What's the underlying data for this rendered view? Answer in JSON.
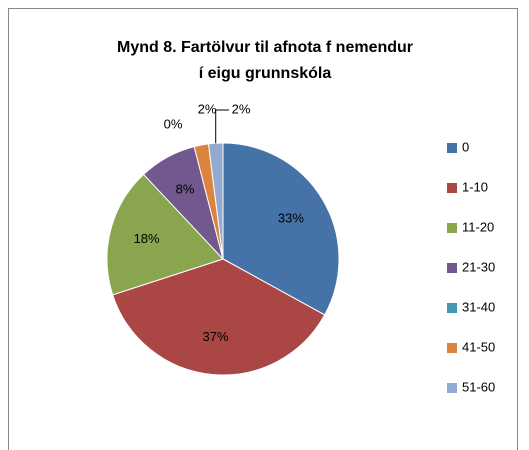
{
  "chart_data": {
    "type": "pie",
    "title": [
      "Mynd 8. Fartölvur til afnota f nemendur",
      "í eigu grunnskóla"
    ],
    "categories": [
      "0",
      "1-10",
      "11-20",
      "21-30",
      "31-40",
      "41-50",
      "51-60"
    ],
    "values": [
      33,
      37,
      18,
      8,
      0,
      2,
      2
    ],
    "value_labels": [
      "33%",
      "37%",
      "18%",
      "8%",
      "0%",
      "2%",
      "2%"
    ],
    "colors": [
      "#4572a7",
      "#aa4643",
      "#89a54e",
      "#71588f",
      "#4198af",
      "#db843d",
      "#93a9cf"
    ],
    "legend": "right"
  }
}
